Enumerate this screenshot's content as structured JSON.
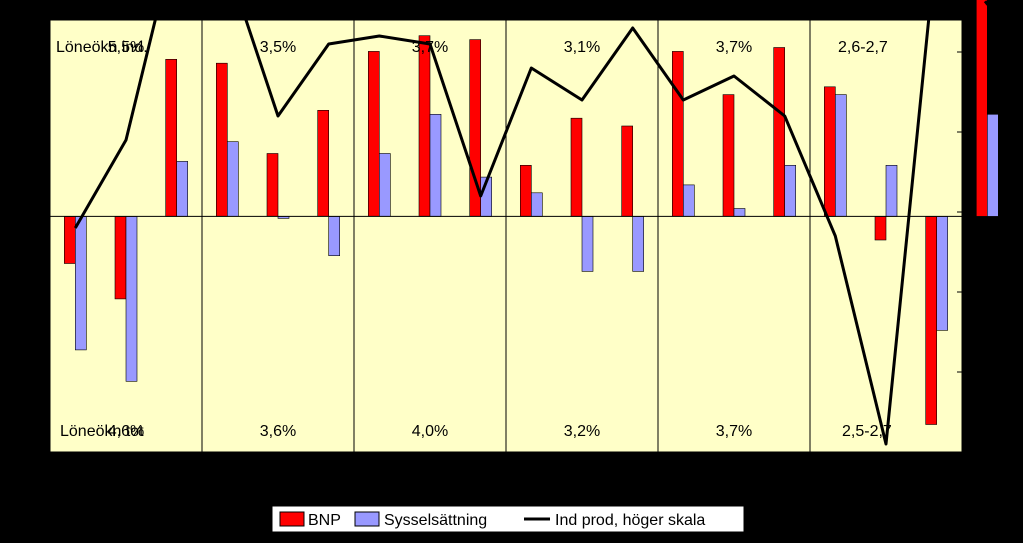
{
  "chart_data": {
    "type": "bar",
    "colors": {
      "plot_background": "#FFFFC8",
      "bnp": "#FF0000",
      "sysselsattning": "#9999FF",
      "ind_prod": "#000000",
      "bnp_forecast": "#FFCC99",
      "sysselsattning_forecast": "#FFFFFF",
      "legend_background": "#FFFFFF"
    },
    "left_axis": {
      "ylim": [
        -6,
        5
      ],
      "ticks": [
        -6,
        -4,
        -2,
        0,
        2,
        4
      ]
    },
    "right_axis": {
      "ylim": [
        -15,
        12
      ],
      "ticks": [
        -15,
        -10,
        -5,
        0,
        5,
        10
      ]
    },
    "grid": false,
    "legend_position": "bottom",
    "top_row_label": "Löneökn ind.",
    "bottom_row_label": "Löneökn tot",
    "periods": [
      {
        "top": "5,5%",
        "bottom": "4,6%"
      },
      {
        "top": "3,5%",
        "bottom": "3,6%"
      },
      {
        "top": "3,7%",
        "bottom": "4,0%"
      },
      {
        "top": "3,1%",
        "bottom": "3,2%"
      },
      {
        "top": "3,7%",
        "bottom": "3,7%"
      },
      {
        "top": "2,6-2,7",
        "bottom": "2,5-2,7"
      }
    ],
    "categories_per_period": 3,
    "series": [
      {
        "name": "BNP",
        "kind": "bar",
        "axis": "left",
        "values": [
          -1.2,
          -2.1,
          4.0,
          3.9,
          1.6,
          2.7,
          4.2,
          4.6,
          4.5,
          1.3,
          2.5,
          2.3,
          4.2,
          3.1,
          4.3,
          3.3,
          -0.6,
          -5.3,
          5.7,
          4.3
        ],
        "forecast_from_index": 19
      },
      {
        "name": "Sysselsättning",
        "kind": "bar",
        "axis": "left",
        "values": [
          -3.4,
          -4.2,
          1.4,
          1.9,
          -0.05,
          -1.0,
          1.6,
          2.6,
          1.0,
          0.6,
          -1.4,
          -1.4,
          0.8,
          0.2,
          1.3,
          3.1,
          1.3,
          -2.9,
          2.6,
          1.7
        ],
        "forecast_from_index": 19
      },
      {
        "name": "Ind prod, höger skala",
        "kind": "line",
        "axis": "right",
        "values": [
          -1.0,
          4.5,
          17.5,
          15.5,
          6.0,
          10.5,
          11.0,
          10.5,
          1.0,
          9.0,
          7.0,
          11.5,
          7.0,
          8.5,
          6.0,
          -1.5,
          -14.5,
          17.0,
          13.0,
          10.0
        ],
        "dashed_from_index": 17
      }
    ]
  }
}
